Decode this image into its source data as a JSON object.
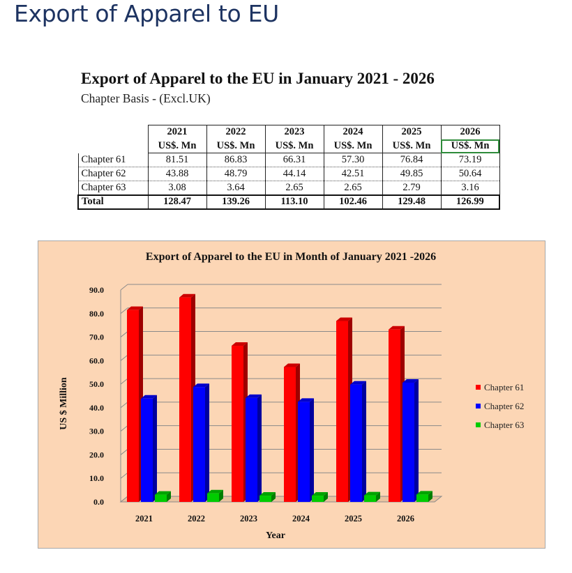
{
  "page": {
    "heading": "Export of Apparel to EU"
  },
  "table": {
    "title": "Export of Apparel to the EU in January 2021 - 2026",
    "subtitle": "Chapter Basis - (Excl.UK)",
    "years": [
      "2021",
      "2022",
      "2023",
      "2024",
      "2025",
      "2026"
    ],
    "unit": "US$. Mn",
    "rows": [
      {
        "label": "Chapter 61",
        "values": [
          "81.51",
          "86.83",
          "66.31",
          "57.30",
          "76.84",
          "73.19"
        ]
      },
      {
        "label": "Chapter 62",
        "values": [
          "43.88",
          "48.79",
          "44.14",
          "42.51",
          "49.85",
          "50.64"
        ]
      },
      {
        "label": "Chapter 63",
        "values": [
          "3.08",
          "3.64",
          "2.65",
          "2.65",
          "2.79",
          "3.16"
        ]
      }
    ],
    "total": {
      "label": "Total",
      "values": [
        "128.47",
        "139.26",
        "113.10",
        "102.46",
        "129.48",
        "126.99"
      ]
    }
  },
  "chart_data": {
    "type": "bar",
    "title": "Export of Apparel to the EU in Month of January 2021 -2026",
    "xlabel": "Year",
    "ylabel": "US $ Million",
    "categories": [
      "2021",
      "2022",
      "2023",
      "2024",
      "2025",
      "2026"
    ],
    "ylim": [
      0,
      90
    ],
    "yticks": [
      "0.0",
      "10.0",
      "20.0",
      "30.0",
      "40.0",
      "50.0",
      "60.0",
      "70.0",
      "80.0",
      "90.0"
    ],
    "grid": true,
    "legend": "right",
    "series": [
      {
        "name": "Chapter 61",
        "color": "#ff0000",
        "values": [
          81.51,
          86.83,
          66.31,
          57.3,
          76.84,
          73.19
        ]
      },
      {
        "name": "Chapter 62",
        "color": "#0000ff",
        "values": [
          43.88,
          48.79,
          44.14,
          42.51,
          49.85,
          50.64
        ]
      },
      {
        "name": "Chapter 63",
        "color": "#00cc00",
        "values": [
          3.08,
          3.64,
          2.65,
          2.65,
          2.79,
          3.16
        ]
      }
    ]
  }
}
